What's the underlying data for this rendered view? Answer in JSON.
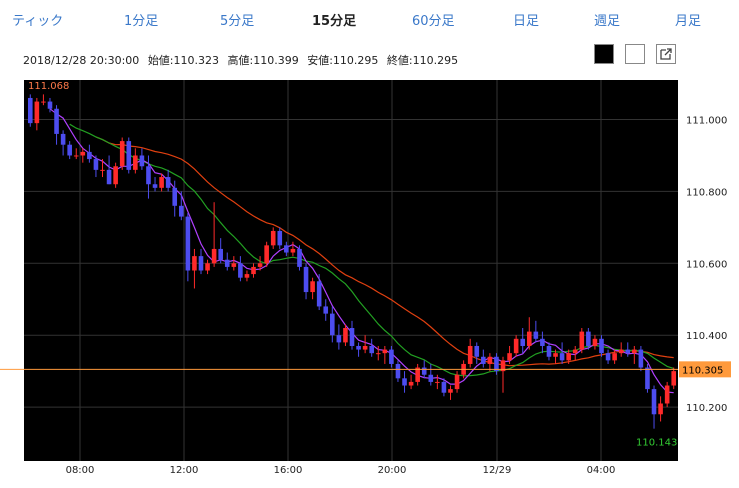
{
  "tabs": [
    {
      "label": "ティック",
      "active": false
    },
    {
      "label": "1分足",
      "active": false
    },
    {
      "label": "5分足",
      "active": false
    },
    {
      "label": "15分足",
      "active": true
    },
    {
      "label": "60分足",
      "active": false
    },
    {
      "label": "日足",
      "active": false
    },
    {
      "label": "週足",
      "active": false
    },
    {
      "label": "月足",
      "active": false
    }
  ],
  "info": {
    "datetime": "2018/12/28 20:30:00",
    "open": "始値:110.323",
    "high": "高値:110.399",
    "low": "安値:110.295",
    "close": "終値:110.295"
  },
  "controls": {
    "bg_black_icon": "square-black",
    "bg_white_icon": "square-white",
    "popout_icon": "external-link-icon"
  },
  "colors": {
    "up": "#ff2a2a",
    "down": "#4d4df0",
    "ma_short": "#b040ff",
    "ma_mid": "#22a022",
    "ma_long": "#e04010",
    "current_line": "#ff9a3c",
    "high_label": "#ff7a4a",
    "low_label": "#33cc33"
  },
  "chart_data": {
    "type": "candlestick",
    "x_ticks": [
      "08:00",
      "12:00",
      "16:00",
      "20:00",
      "12/29",
      "04:00"
    ],
    "y_ticks": [
      "111.000",
      "110.800",
      "110.600",
      "110.400",
      "110.200"
    ],
    "ylim": [
      110.05,
      111.11
    ],
    "current_price": "110.305",
    "high_label": "111.068",
    "low_label": "110.143",
    "moving_averages": [
      "short (purple)",
      "medium (green)",
      "long (red)"
    ],
    "ohlc": [
      [
        111.06,
        111.07,
        110.98,
        110.99
      ],
      [
        110.99,
        111.06,
        110.97,
        111.05
      ],
      [
        111.05,
        111.07,
        111.04,
        111.05
      ],
      [
        111.05,
        111.06,
        111.02,
        111.03
      ],
      [
        111.03,
        111.04,
        110.93,
        110.96
      ],
      [
        110.96,
        110.97,
        110.9,
        110.93
      ],
      [
        110.93,
        110.94,
        110.89,
        110.9
      ],
      [
        110.9,
        110.92,
        110.89,
        110.9
      ],
      [
        110.9,
        110.92,
        110.88,
        110.91
      ],
      [
        110.91,
        110.93,
        110.88,
        110.89
      ],
      [
        110.89,
        110.9,
        110.84,
        110.86
      ],
      [
        110.86,
        110.89,
        110.84,
        110.86
      ],
      [
        110.86,
        110.9,
        110.82,
        110.82
      ],
      [
        110.82,
        110.88,
        110.81,
        110.87
      ],
      [
        110.87,
        110.95,
        110.86,
        110.94
      ],
      [
        110.94,
        110.95,
        110.85,
        110.86
      ],
      [
        110.86,
        110.92,
        110.85,
        110.9
      ],
      [
        110.9,
        110.92,
        110.86,
        110.87
      ],
      [
        110.87,
        110.9,
        110.78,
        110.82
      ],
      [
        110.82,
        110.84,
        110.8,
        110.81
      ],
      [
        110.81,
        110.85,
        110.8,
        110.84
      ],
      [
        110.84,
        110.86,
        110.8,
        110.81
      ],
      [
        110.81,
        110.83,
        110.73,
        110.76
      ],
      [
        110.76,
        110.8,
        110.72,
        110.73
      ],
      [
        110.73,
        110.74,
        110.55,
        110.58
      ],
      [
        110.58,
        110.64,
        110.53,
        110.62
      ],
      [
        110.62,
        110.64,
        110.57,
        110.58
      ],
      [
        110.58,
        110.61,
        110.57,
        110.6
      ],
      [
        110.6,
        110.77,
        110.59,
        110.64
      ],
      [
        110.64,
        110.67,
        110.6,
        110.61
      ],
      [
        110.61,
        110.63,
        110.58,
        110.59
      ],
      [
        110.59,
        110.62,
        110.58,
        110.6
      ],
      [
        110.6,
        110.62,
        110.55,
        110.56
      ],
      [
        110.56,
        110.58,
        110.55,
        110.57
      ],
      [
        110.57,
        110.6,
        110.56,
        110.59
      ],
      [
        110.59,
        110.62,
        110.58,
        110.6
      ],
      [
        110.6,
        110.66,
        110.59,
        110.65
      ],
      [
        110.65,
        110.7,
        110.64,
        110.69
      ],
      [
        110.69,
        110.7,
        110.64,
        110.65
      ],
      [
        110.65,
        110.66,
        110.62,
        110.63
      ],
      [
        110.63,
        110.66,
        110.62,
        110.64
      ],
      [
        110.64,
        110.65,
        110.58,
        110.59
      ],
      [
        110.59,
        110.6,
        110.5,
        110.52
      ],
      [
        110.52,
        110.56,
        110.5,
        110.55
      ],
      [
        110.55,
        110.57,
        110.47,
        110.48
      ],
      [
        110.48,
        110.5,
        110.44,
        110.46
      ],
      [
        110.46,
        110.48,
        110.38,
        110.4
      ],
      [
        110.4,
        110.43,
        110.36,
        110.38
      ],
      [
        110.38,
        110.43,
        110.37,
        110.42
      ],
      [
        110.42,
        110.44,
        110.36,
        110.37
      ],
      [
        110.37,
        110.38,
        110.34,
        110.36
      ],
      [
        110.36,
        110.4,
        110.35,
        110.37
      ],
      [
        110.37,
        110.39,
        110.34,
        110.35
      ],
      [
        110.35,
        110.37,
        110.33,
        110.35
      ],
      [
        110.35,
        110.37,
        110.32,
        110.36
      ],
      [
        110.36,
        110.37,
        110.31,
        110.32
      ],
      [
        110.32,
        110.33,
        110.27,
        110.28
      ],
      [
        110.28,
        110.3,
        110.24,
        110.26
      ],
      [
        110.26,
        110.29,
        110.25,
        110.27
      ],
      [
        110.27,
        110.32,
        110.26,
        110.31
      ],
      [
        110.31,
        110.33,
        110.28,
        110.29
      ],
      [
        110.29,
        110.32,
        110.26,
        110.27
      ],
      [
        110.27,
        110.29,
        110.25,
        110.27
      ],
      [
        110.27,
        110.28,
        110.23,
        110.24
      ],
      [
        110.24,
        110.26,
        110.22,
        110.25
      ],
      [
        110.25,
        110.3,
        110.24,
        110.29
      ],
      [
        110.29,
        110.33,
        110.28,
        110.32
      ],
      [
        110.32,
        110.39,
        110.31,
        110.37
      ],
      [
        110.37,
        110.38,
        110.32,
        110.34
      ],
      [
        110.34,
        110.36,
        110.31,
        110.32
      ],
      [
        110.32,
        110.35,
        110.3,
        110.34
      ],
      [
        110.34,
        110.35,
        110.29,
        110.3
      ],
      [
        110.3,
        110.34,
        110.24,
        110.33
      ],
      [
        110.33,
        110.37,
        110.32,
        110.35
      ],
      [
        110.35,
        110.4,
        110.34,
        110.39
      ],
      [
        110.39,
        110.42,
        110.35,
        110.37
      ],
      [
        110.37,
        110.45,
        110.36,
        110.41
      ],
      [
        110.41,
        110.44,
        110.38,
        110.39
      ],
      [
        110.39,
        110.41,
        110.35,
        110.37
      ],
      [
        110.37,
        110.38,
        110.33,
        110.34
      ],
      [
        110.34,
        110.36,
        110.32,
        110.35
      ],
      [
        110.35,
        110.38,
        110.32,
        110.33
      ],
      [
        110.33,
        110.36,
        110.32,
        110.35
      ],
      [
        110.35,
        110.37,
        110.33,
        110.36
      ],
      [
        110.36,
        110.42,
        110.35,
        110.41
      ],
      [
        110.41,
        110.42,
        110.36,
        110.37
      ],
      [
        110.37,
        110.4,
        110.36,
        110.39
      ],
      [
        110.39,
        110.4,
        110.34,
        110.35
      ],
      [
        110.35,
        110.36,
        110.32,
        110.33
      ],
      [
        110.33,
        110.36,
        110.32,
        110.35
      ],
      [
        110.35,
        110.38,
        110.34,
        110.36
      ],
      [
        110.36,
        110.38,
        110.34,
        110.35
      ],
      [
        110.35,
        110.37,
        110.32,
        110.36
      ],
      [
        110.36,
        110.37,
        110.3,
        110.31
      ],
      [
        110.31,
        110.32,
        110.24,
        110.25
      ],
      [
        110.25,
        110.26,
        110.14,
        110.18
      ],
      [
        110.18,
        110.23,
        110.16,
        110.21
      ],
      [
        110.21,
        110.27,
        110.2,
        110.26
      ],
      [
        110.26,
        110.31,
        110.25,
        110.3
      ]
    ]
  }
}
